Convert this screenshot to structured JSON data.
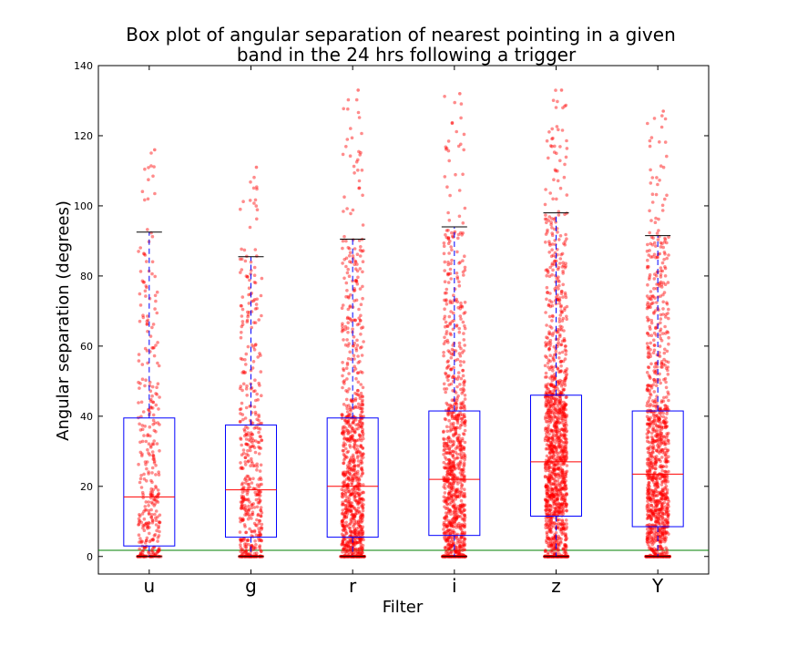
{
  "chart_data": {
    "type": "box",
    "title_lines": [
      "Box plot of angular separation of nearest pointing in a given",
      "band in the 24 hrs following a trigger"
    ],
    "xlabel": "Filter",
    "ylabel": "Angular separation (degrees)",
    "categories": [
      "u",
      "g",
      "r",
      "i",
      "z",
      "Y"
    ],
    "ylim": [
      -5,
      140
    ],
    "yticks": [
      0,
      20,
      40,
      60,
      80,
      100,
      120,
      140
    ],
    "reference_line": {
      "y": 1.75,
      "color": "#008000"
    },
    "boxes": [
      {
        "name": "u",
        "q1": 3,
        "median": 17,
        "q3": 39.5,
        "whisker_low": 0,
        "whisker_high": 92.5,
        "max_point": 116,
        "density": 0.25
      },
      {
        "name": "g",
        "q1": 5.5,
        "median": 19,
        "q3": 37.5,
        "whisker_low": 0,
        "whisker_high": 85.5,
        "max_point": 111,
        "density": 0.35
      },
      {
        "name": "r",
        "q1": 5.5,
        "median": 20,
        "q3": 39.5,
        "whisker_low": 0,
        "whisker_high": 90.5,
        "max_point": 133,
        "density": 0.7
      },
      {
        "name": "i",
        "q1": 6,
        "median": 22,
        "q3": 41.5,
        "whisker_low": 0,
        "whisker_high": 94,
        "max_point": 132,
        "density": 0.7
      },
      {
        "name": "z",
        "q1": 11.5,
        "median": 27,
        "q3": 46,
        "whisker_low": 0,
        "whisker_high": 98,
        "max_point": 133,
        "density": 1.0
      },
      {
        "name": "Y",
        "q1": 8.5,
        "median": 23.5,
        "q3": 41.5,
        "whisker_low": 0,
        "whisker_high": 91.5,
        "max_point": 127,
        "density": 0.8
      }
    ],
    "colors": {
      "box": "#0000ff",
      "median": "#ff0000",
      "whisker": "#0000ff",
      "cap": "#000000",
      "points": "#ff0000",
      "reference": "#008000"
    },
    "grid": false,
    "legend": "none"
  }
}
